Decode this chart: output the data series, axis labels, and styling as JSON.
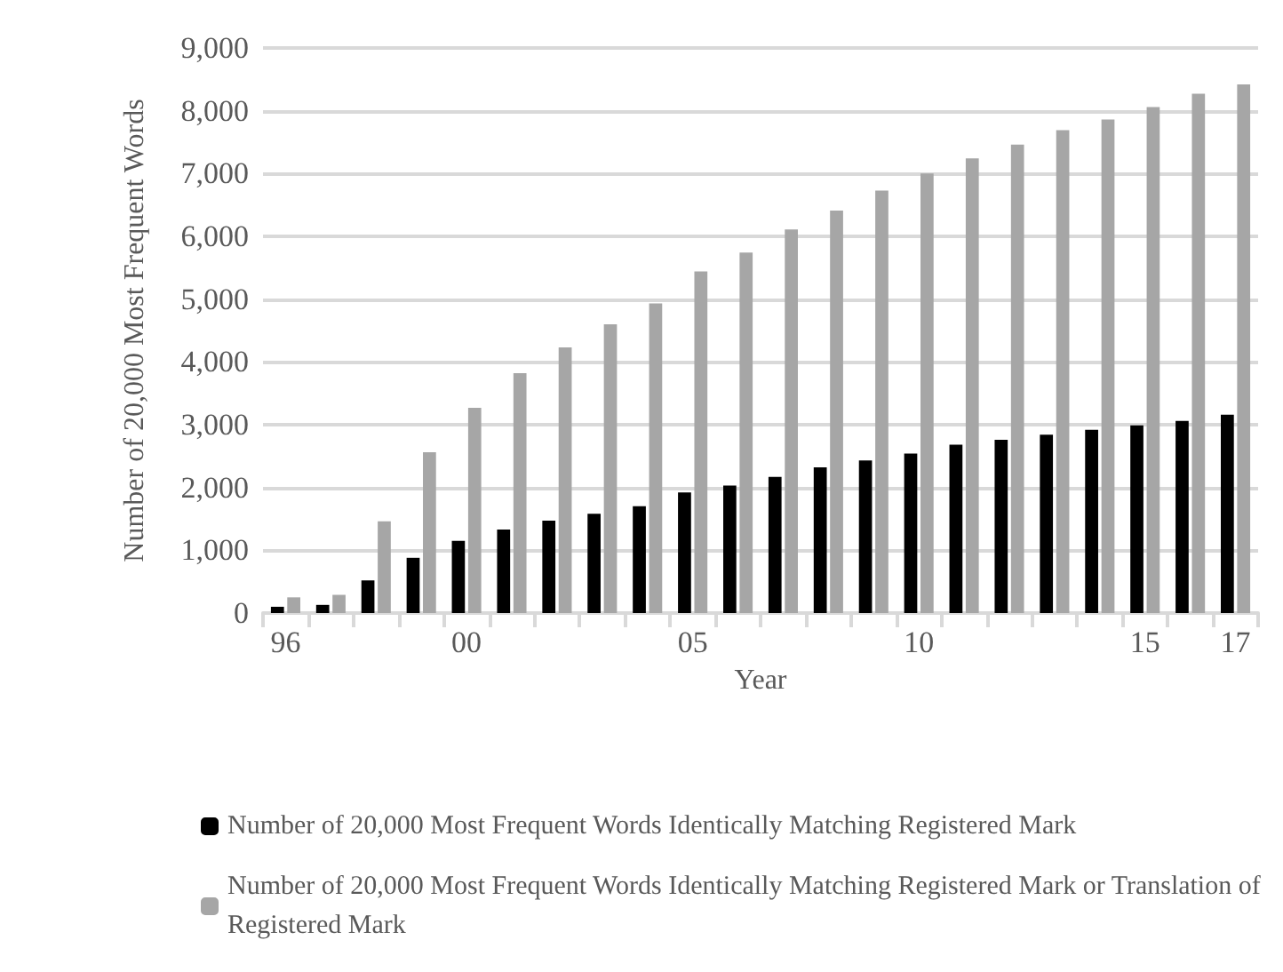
{
  "chart_data": {
    "type": "bar",
    "xlabel": "Year",
    "ylabel": "Number of 20,000 Most Frequent Words",
    "categories": [
      "96",
      null,
      null,
      null,
      "00",
      null,
      null,
      null,
      null,
      "05",
      null,
      null,
      null,
      null,
      "10",
      null,
      null,
      null,
      null,
      "15",
      null,
      "17"
    ],
    "series": [
      {
        "name": "Number of 20,000 Most Frequent Words Identically Matching Registered Mark",
        "color": "#000000",
        "values": [
          100,
          130,
          520,
          880,
          1150,
          1330,
          1470,
          1580,
          1700,
          1920,
          2030,
          2170,
          2320,
          2430,
          2540,
          2680,
          2760,
          2840,
          2920,
          2990,
          3060,
          3160
        ]
      },
      {
        "name": "Number of 20,000 Most Frequent Words Identically Matching Registered Mark or Translation of Registered Mark",
        "color": "#a6a6a6",
        "values": [
          250,
          290,
          1460,
          2560,
          3270,
          3820,
          4230,
          4600,
          4930,
          5440,
          5740,
          6110,
          6410,
          6730,
          7000,
          7240,
          7460,
          7690,
          7860,
          8060,
          8270,
          8420
        ]
      }
    ],
    "ylim": [
      0,
      9000
    ],
    "yticks": [
      {
        "value": 0,
        "label": "0"
      },
      {
        "value": 1000,
        "label": "1,000"
      },
      {
        "value": 2000,
        "label": "2,000"
      },
      {
        "value": 3000,
        "label": "3,000"
      },
      {
        "value": 4000,
        "label": "4,000"
      },
      {
        "value": 5000,
        "label": "5,000"
      },
      {
        "value": 6000,
        "label": "6,000"
      },
      {
        "value": 7000,
        "label": "7,000"
      },
      {
        "value": 8000,
        "label": "8,000"
      },
      {
        "value": 9000,
        "label": "9,000"
      }
    ],
    "grid": "y",
    "legend": "bottom"
  }
}
